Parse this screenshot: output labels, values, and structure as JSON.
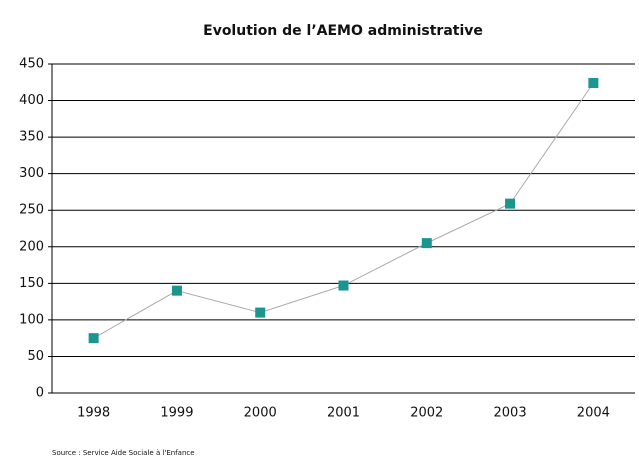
{
  "chart_data": {
    "type": "line",
    "title": "Evolution de l’AEMO administrative",
    "categories": [
      "1998",
      "1999",
      "2000",
      "2001",
      "2002",
      "2003",
      "2004"
    ],
    "values": [
      75,
      140,
      110,
      147,
      205,
      259,
      424
    ],
    "color": "#1a9590",
    "line_color": "#aaaaaa",
    "ylim": [
      0,
      450
    ],
    "yticks": [
      0,
      50,
      100,
      150,
      200,
      250,
      300,
      350,
      400,
      450
    ],
    "grid": true,
    "source": "Source : Service Aide Sociale à l'Enfance"
  }
}
